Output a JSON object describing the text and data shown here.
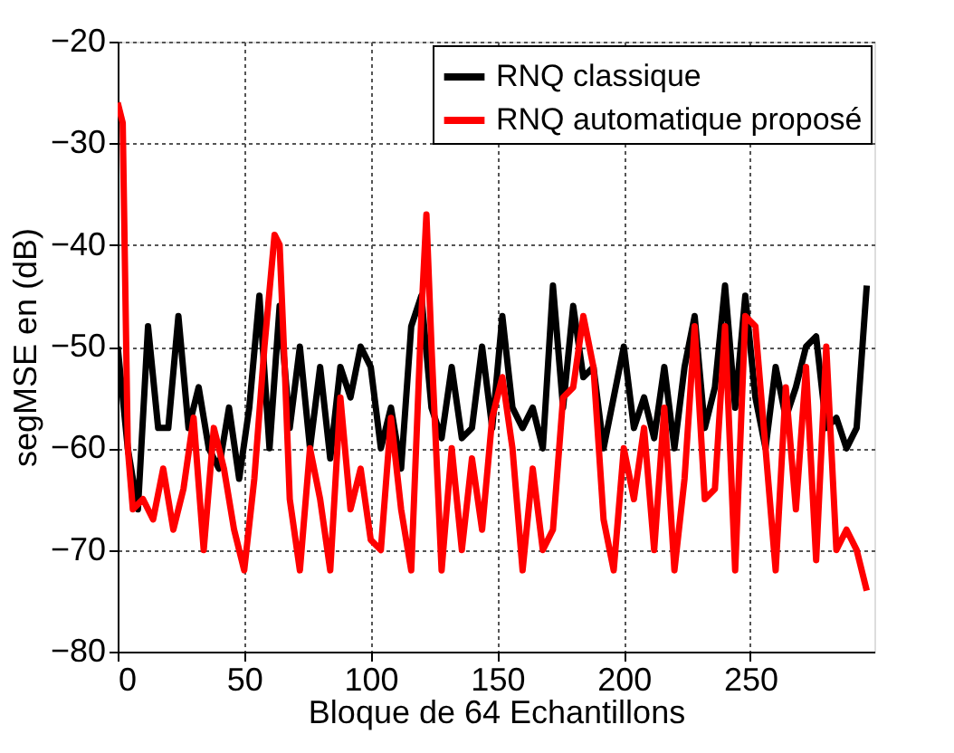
{
  "chart_data": {
    "type": "line",
    "xlabel": "Bloque de 64 Echantillons",
    "ylabel": "segMSE en (dB)",
    "xlim": [
      0,
      299
    ],
    "xticks": [
      0,
      50,
      100,
      150,
      200,
      250
    ],
    "ylim": [
      -80,
      -20
    ],
    "yticks": [
      -80,
      -70,
      -60,
      -50,
      -40,
      -30,
      -20
    ],
    "grid": true,
    "legend": "top right",
    "line_style": "solid",
    "marker": "none",
    "series": [
      {
        "name": "RNQ classique",
        "color": "#000000",
        "x": [
          0,
          4,
          8,
          12,
          16,
          20,
          24,
          28,
          32,
          36,
          40,
          44,
          48,
          52,
          56,
          60,
          64,
          68,
          72,
          76,
          80,
          84,
          88,
          92,
          96,
          100,
          104,
          108,
          112,
          116,
          120,
          124,
          128,
          132,
          136,
          140,
          144,
          148,
          152,
          156,
          160,
          164,
          168,
          172,
          176,
          180,
          184,
          188,
          192,
          196,
          200,
          204,
          208,
          212,
          216,
          220,
          224,
          228,
          232,
          236,
          240,
          244,
          248,
          252,
          256,
          260,
          264,
          268,
          272,
          276,
          280,
          284,
          288,
          292,
          296
        ],
        "values": [
          -50,
          -60,
          -66,
          -48,
          -58,
          -58,
          -47,
          -58,
          -54,
          -60,
          -62,
          -56,
          -63,
          -56,
          -45,
          -60,
          -46,
          -58,
          -50,
          -60,
          -52,
          -61,
          -52,
          -55,
          -50,
          -52,
          -60,
          -56,
          -62,
          -48,
          -45,
          -56,
          -59,
          -52,
          -59,
          -58,
          -50,
          -58,
          -47,
          -56,
          -58,
          -56,
          -60,
          -44,
          -56,
          -46,
          -53,
          -52,
          -60,
          -55,
          -50,
          -58,
          -55,
          -59,
          -52,
          -60,
          -52,
          -47,
          -58,
          -54,
          -44,
          -56,
          -45,
          -55,
          -60,
          -52,
          -57,
          -54,
          -50,
          -49,
          -58,
          -57,
          -60,
          -58,
          -44
        ]
      },
      {
        "name": "RNQ automatique proposé",
        "color": "#ff0000",
        "x": [
          0,
          2,
          4,
          6,
          10,
          14,
          18,
          22,
          26,
          30,
          34,
          38,
          42,
          46,
          50,
          54,
          58,
          62,
          64,
          66,
          68,
          72,
          76,
          80,
          84,
          88,
          92,
          96,
          100,
          104,
          108,
          112,
          116,
          120,
          122,
          124,
          128,
          132,
          136,
          140,
          144,
          148,
          152,
          156,
          160,
          164,
          168,
          172,
          176,
          180,
          184,
          188,
          192,
          196,
          200,
          204,
          208,
          212,
          216,
          220,
          224,
          228,
          232,
          236,
          240,
          244,
          248,
          252,
          256,
          260,
          264,
          268,
          272,
          276,
          280,
          284,
          288,
          292,
          296
        ],
        "values": [
          -26,
          -28,
          -60,
          -66,
          -65,
          -67,
          -62,
          -68,
          -64,
          -57,
          -70,
          -58,
          -62,
          -68,
          -72,
          -63,
          -50,
          -39,
          -40,
          -52,
          -65,
          -72,
          -60,
          -65,
          -72,
          -55,
          -66,
          -62,
          -69,
          -70,
          -57,
          -66,
          -72,
          -47,
          -37,
          -50,
          -72,
          -60,
          -70,
          -61,
          -68,
          -57,
          -53,
          -60,
          -72,
          -62,
          -70,
          -68,
          -55,
          -54,
          -47,
          -52,
          -67,
          -72,
          -60,
          -65,
          -58,
          -70,
          -56,
          -72,
          -63,
          -48,
          -65,
          -64,
          -48,
          -72,
          -47,
          -48,
          -60,
          -72,
          -54,
          -66,
          -52,
          -71,
          -50,
          -70,
          -68,
          -70,
          -74
        ]
      }
    ]
  }
}
